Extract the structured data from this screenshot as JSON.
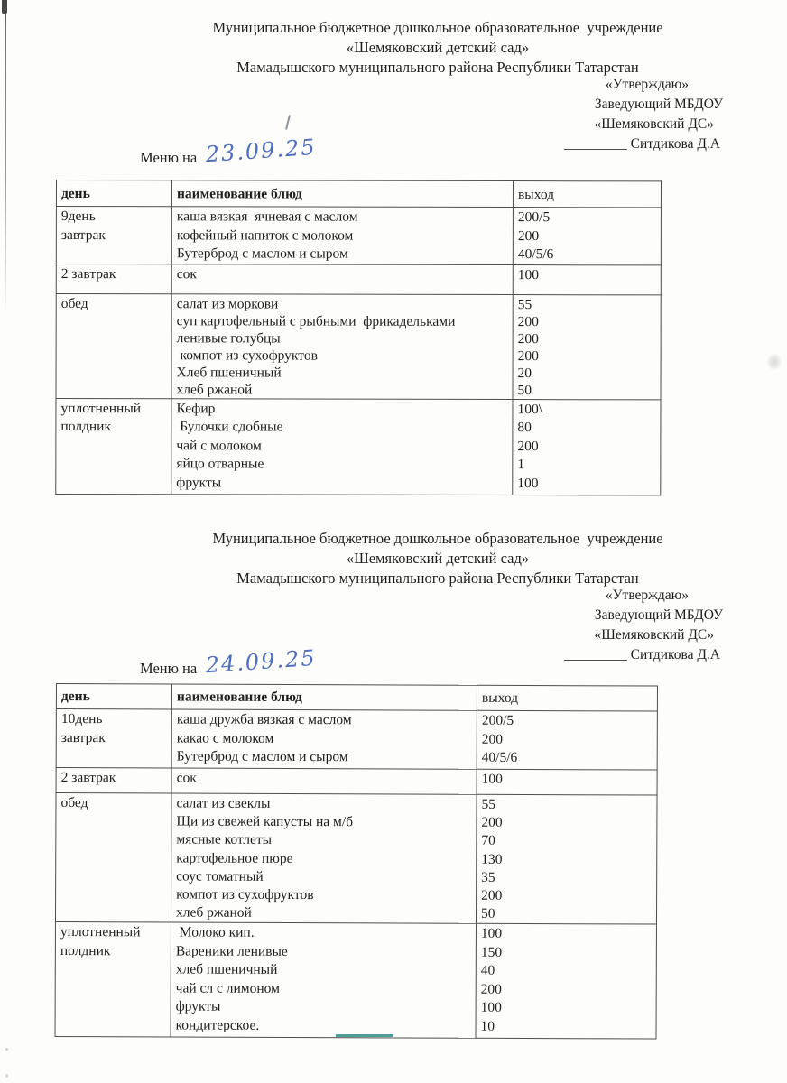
{
  "document": {
    "org_lines": [
      "Муниципальное бюджетное дошкольное образовательное  учреждение",
      "«Шемяковский детский сад»",
      "Мамадышского муниципального района Республики Татарстан"
    ],
    "approve_lines": [
      "«Утверждаю»",
      "Заведующий МБДОУ",
      "«Шемяковский ДС»"
    ],
    "signature_blank": "_________",
    "signature_name": "Ситдикова Д.А",
    "menu_label": "Меню на",
    "handwriting_color": "#4e6ec2"
  },
  "menus": [
    {
      "date": "23.09.25",
      "table": {
        "headers": [
          "день",
          "наименование блюд",
          "выход"
        ],
        "rows": [
          {
            "day_lines": [
              "9день",
              "завтрак"
            ],
            "dishes": [
              {
                "name": "каша вязкая  ячневая с маслом",
                "out": "200/5"
              },
              {
                "name": "кофейный напиток с молоком",
                "out": "200"
              },
              {
                "name": "Бутерброд с маслом и сыром",
                "out": "40/5/6"
              }
            ]
          },
          {
            "day_lines": [
              "2 завтрак"
            ],
            "dishes": [
              {
                "name": "сок",
                "out": "100"
              }
            ]
          },
          {
            "day_lines": [
              "обед"
            ],
            "dishes": [
              {
                "name": "салат из моркови",
                "out": "55"
              },
              {
                "name": "суп картофельный с рыбными  фрикадельками",
                "out": "200"
              },
              {
                "name": "ленивые голубцы",
                "out": "200"
              },
              {
                "name": " компот из сухофруктов",
                "out": "200"
              },
              {
                "name": "Хлеб пшеничный",
                "out": "20"
              },
              {
                "name": "хлеб ржаной",
                "out": "50"
              }
            ]
          },
          {
            "day_lines": [
              "уплотненный",
              "полдник"
            ],
            "dishes": [
              {
                "name": "Кефир",
                "out": "100\\"
              },
              {
                "name": " Булочки сдобные",
                "out": "80"
              },
              {
                "name": "чай с молоком",
                "out": "200"
              },
              {
                "name": "яйцо отварные",
                "out": "1"
              },
              {
                "name": "фрукты",
                "out": "100"
              }
            ]
          }
        ]
      }
    },
    {
      "date": "24.09.25",
      "table": {
        "headers": [
          "день",
          "наименование блюд",
          "выход"
        ],
        "rows": [
          {
            "day_lines": [
              "10день",
              "завтрак"
            ],
            "dishes": [
              {
                "name": "каша дружба вязкая с маслом",
                "out": "200/5"
              },
              {
                "name": "какао с молоком",
                "out": "200"
              },
              {
                "name": "Бутерброд с маслом и сыром",
                "out": "40/5/6"
              }
            ]
          },
          {
            "day_lines": [
              "2 завтрак"
            ],
            "dishes": [
              {
                "name": "сок",
                "out": "100"
              }
            ]
          },
          {
            "day_lines": [
              "обед"
            ],
            "dishes": [
              {
                "name": "салат из свеклы",
                "out": "55"
              },
              {
                "name": "Щи из свежей капусты на м/б",
                "out": "200"
              },
              {
                "name": "мясные котлеты",
                "out": "70"
              },
              {
                "name": "картофельное пюре",
                "out": "130"
              },
              {
                "name": "соус томатный",
                "out": "35"
              },
              {
                "name": "компот из сухофруктов",
                "out": "200"
              },
              {
                "name": "хлеб ржаной",
                "out": "50"
              }
            ]
          },
          {
            "day_lines": [
              "уплотненный",
              "полдник"
            ],
            "dishes": [
              {
                "name": " Молоко кип.",
                "out": "100"
              },
              {
                "name": "Вареники ленивые",
                "out": "150"
              },
              {
                "name": "хлеб пшеничный",
                "out": "40"
              },
              {
                "name": "чай сл с лимоном",
                "out": "200"
              },
              {
                "name": "фрукты",
                "out": "100"
              },
              {
                "name": "кондитерское.",
                "out": "10"
              }
            ]
          }
        ]
      }
    }
  ]
}
